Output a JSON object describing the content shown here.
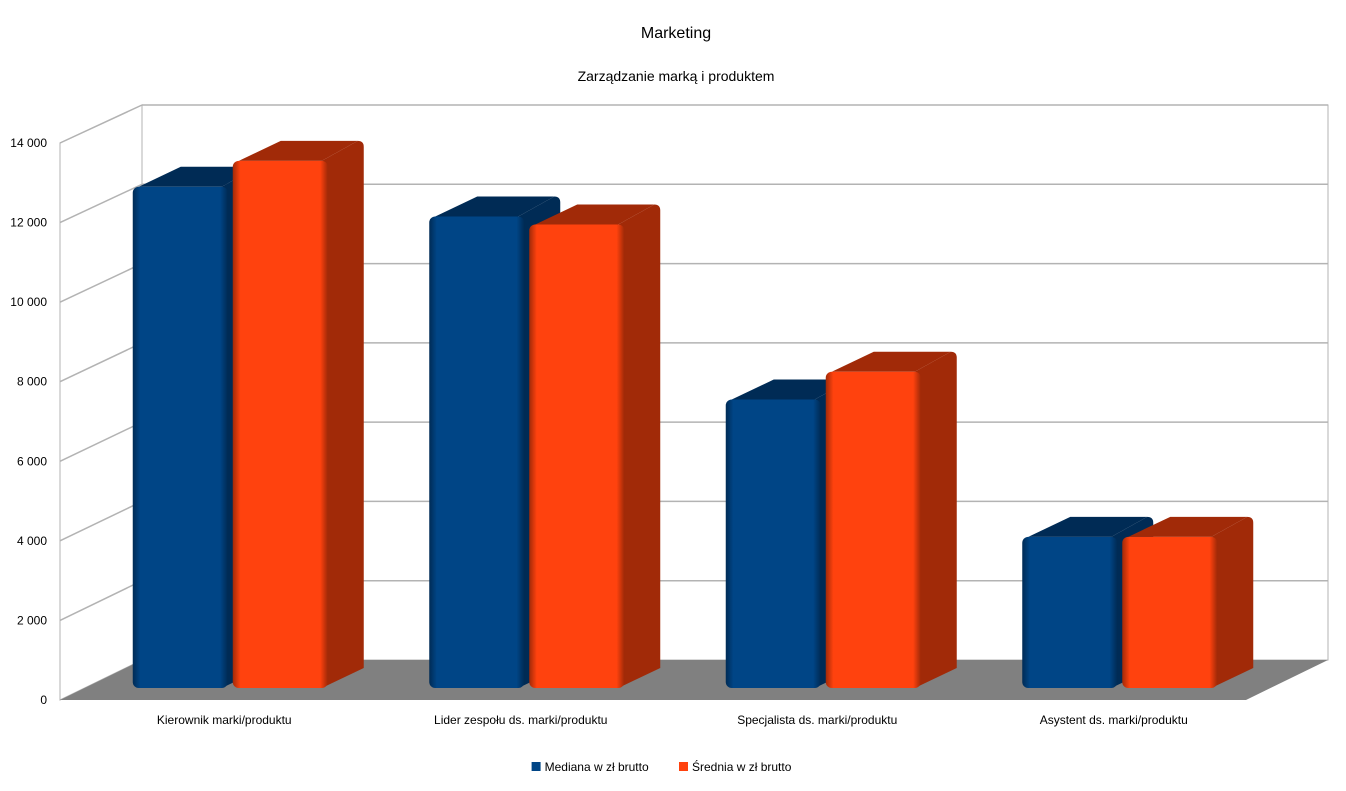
{
  "chart_data": {
    "type": "bar",
    "title": "Marketing",
    "subtitle": "Zarządzanie marką i produktem",
    "categories": [
      "Kierownik marki/produktu",
      "Lider zespołu ds. marki/produktu",
      "Specjalista ds. marki/produktu",
      "Asystent ds. marki/produktu"
    ],
    "series": [
      {
        "name": "Mediana w zł brutto",
        "values": [
          12600,
          11850,
          7250,
          3800
        ],
        "color": "#004586",
        "side_color": "#002b55"
      },
      {
        "name": "Średnia w zł brutto",
        "values": [
          13250,
          11650,
          7950,
          3800
        ],
        "color": "#ff420e",
        "side_color": "#a12a08"
      }
    ],
    "ylim": [
      0,
      14000
    ],
    "yticks": [
      0,
      2000,
      4000,
      6000,
      8000,
      10000,
      12000,
      14000
    ],
    "ytick_labels": [
      "0",
      "2 000",
      "4 000",
      "6 000",
      "8 000",
      "10 000",
      "12 000",
      "14 000"
    ],
    "grid": true,
    "legend": "bottom",
    "floor_color": "#808080"
  }
}
